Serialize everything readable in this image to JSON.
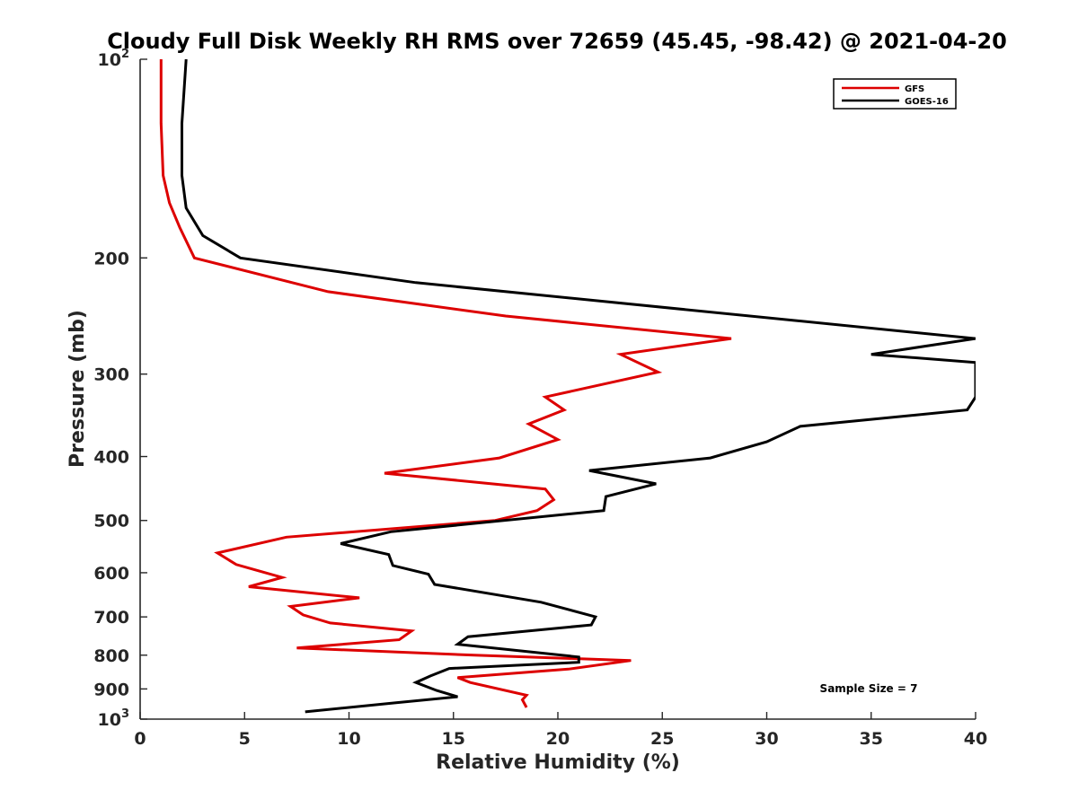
{
  "chart_data": {
    "type": "line",
    "title": "Cloudy Full Disk Weekly RH RMS over 72659 (45.45, -98.42) @ 2021-04-20",
    "xlabel": "Relative Humidity (%)",
    "ylabel": "Pressure (mb)",
    "xlim": [
      0,
      40
    ],
    "ylim": [
      100,
      1000
    ],
    "yscale": "log",
    "y_reversed": true,
    "grid": false,
    "legend_position": "top-right",
    "annotation": "Sample Size = 7",
    "xticks": [
      "0",
      "5",
      "10",
      "15",
      "20",
      "25",
      "30",
      "35",
      "40"
    ],
    "yticks": [
      {
        "value": 100,
        "base": "10",
        "exp": "2"
      },
      {
        "value": 200,
        "label": "200"
      },
      {
        "value": 300,
        "label": "300"
      },
      {
        "value": 400,
        "label": "400"
      },
      {
        "value": 500,
        "label": "500"
      },
      {
        "value": 600,
        "label": "600"
      },
      {
        "value": 700,
        "label": "700"
      },
      {
        "value": 800,
        "label": "800"
      },
      {
        "value": 900,
        "label": "900"
      },
      {
        "value": 1000,
        "base": "10",
        "exp": "3"
      }
    ],
    "series": [
      {
        "name": "GFS",
        "color": "#dd0000",
        "points": [
          [
            1.0,
            100
          ],
          [
            1.0,
            125
          ],
          [
            1.1,
            150
          ],
          [
            1.4,
            165
          ],
          [
            1.9,
            180
          ],
          [
            2.6,
            200
          ],
          [
            9.0,
            225
          ],
          [
            17.5,
            245
          ],
          [
            28.3,
            265
          ],
          [
            23.0,
            280
          ],
          [
            24.8,
            298
          ],
          [
            19.4,
            325
          ],
          [
            20.3,
            340
          ],
          [
            18.6,
            357
          ],
          [
            20.0,
            377
          ],
          [
            17.2,
            402
          ],
          [
            11.7,
            424
          ],
          [
            19.4,
            448
          ],
          [
            19.8,
            465
          ],
          [
            19.0,
            483
          ],
          [
            17.0,
            500
          ],
          [
            7.0,
            530
          ],
          [
            3.7,
            560
          ],
          [
            4.6,
            583
          ],
          [
            6.8,
            610
          ],
          [
            5.2,
            630
          ],
          [
            10.5,
            655
          ],
          [
            7.2,
            675
          ],
          [
            7.8,
            695
          ],
          [
            9.1,
            715
          ],
          [
            13.0,
            735
          ],
          [
            12.4,
            758
          ],
          [
            7.5,
            780
          ],
          [
            16.0,
            800
          ],
          [
            23.5,
            815
          ],
          [
            20.5,
            840
          ],
          [
            15.2,
            865
          ],
          [
            15.8,
            880
          ],
          [
            18.5,
            920
          ],
          [
            18.3,
            935
          ],
          [
            18.5,
            960
          ]
        ]
      },
      {
        "name": "GOES-16",
        "color": "#000000",
        "points": [
          [
            2.2,
            100
          ],
          [
            2.0,
            125
          ],
          [
            2.0,
            150
          ],
          [
            2.2,
            168
          ],
          [
            3.0,
            185
          ],
          [
            4.8,
            200
          ],
          [
            13.2,
            218
          ],
          [
            40.0,
            265
          ],
          [
            35.0,
            280
          ],
          [
            40.0,
            288
          ],
          [
            40.0,
            325
          ],
          [
            39.6,
            340
          ],
          [
            31.6,
            360
          ],
          [
            30.0,
            380
          ],
          [
            27.3,
            402
          ],
          [
            21.5,
            420
          ],
          [
            24.7,
            440
          ],
          [
            22.3,
            460
          ],
          [
            22.2,
            483
          ],
          [
            12.0,
            520
          ],
          [
            9.6,
            542
          ],
          [
            11.9,
            563
          ],
          [
            12.1,
            585
          ],
          [
            13.8,
            603
          ],
          [
            14.1,
            625
          ],
          [
            19.2,
            665
          ],
          [
            21.8,
            700
          ],
          [
            21.6,
            720
          ],
          [
            15.7,
            750
          ],
          [
            15.2,
            770
          ],
          [
            21.0,
            805
          ],
          [
            21.0,
            820
          ],
          [
            14.8,
            838
          ],
          [
            13.9,
            860
          ],
          [
            13.2,
            880
          ],
          [
            14.2,
            905
          ],
          [
            15.2,
            925
          ],
          [
            12.2,
            945
          ],
          [
            7.9,
            975
          ]
        ]
      }
    ]
  }
}
